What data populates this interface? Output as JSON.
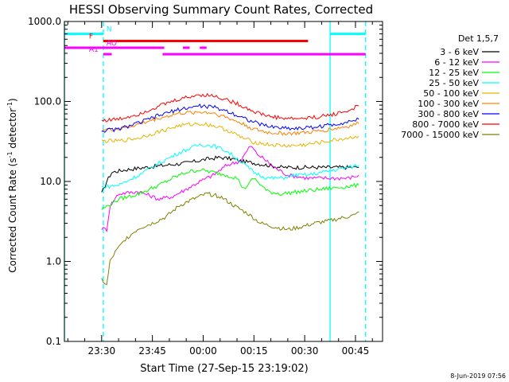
{
  "chart_data": {
    "type": "line",
    "title": "HESSI Observing Summary Count Rates, Corrected",
    "xlabel": "Start Time (27-Sep-15 23:19:02)",
    "ylabel_main": "Corrected Count Rate (s",
    "ylabel_sup1": "-1",
    "ylabel_mid": " detector",
    "ylabel_sup2": "-1",
    "ylabel_end": ")",
    "y_scale": "log",
    "ylim": [
      0.1,
      1000.0
    ],
    "xlim": [
      "23:19:02",
      "00:53:00"
    ],
    "y_ticks": [
      {
        "value": 1000.0,
        "label": "1000.0"
      },
      {
        "value": 100.0,
        "label": "100.0"
      },
      {
        "value": 10.0,
        "label": "10.0"
      },
      {
        "value": 1.0,
        "label": "1.0"
      },
      {
        "value": 0.1,
        "label": "0.1"
      }
    ],
    "x_ticks": [
      {
        "minutes": 11,
        "label": "23:30"
      },
      {
        "minutes": 26,
        "label": "23:45"
      },
      {
        "minutes": 41,
        "label": "00:00"
      },
      {
        "minutes": 56,
        "label": "00:15"
      },
      {
        "minutes": 71,
        "label": "00:30"
      },
      {
        "minutes": 86,
        "label": "00:45"
      }
    ],
    "legend_title": "Det 1,5,7",
    "series": [
      {
        "name": "3 - 6 keV",
        "color": "#000000",
        "points": [
          [
            11,
            7
          ],
          [
            12.5,
            10
          ],
          [
            14,
            13
          ],
          [
            18,
            14
          ],
          [
            24,
            15
          ],
          [
            30,
            16
          ],
          [
            36,
            17
          ],
          [
            42,
            19
          ],
          [
            46,
            20
          ],
          [
            50,
            19
          ],
          [
            52,
            18
          ],
          [
            56,
            17
          ],
          [
            60,
            16
          ],
          [
            64,
            15
          ],
          [
            68,
            15
          ],
          [
            72,
            15
          ],
          [
            76,
            15
          ],
          [
            80,
            15
          ],
          [
            84,
            15
          ],
          [
            87,
            15
          ]
        ]
      },
      {
        "name": "6 - 12 keV",
        "color": "#ff00ff",
        "points": [
          [
            11,
            2.6
          ],
          [
            12.5,
            2.5
          ],
          [
            13.5,
            5
          ],
          [
            16,
            7
          ],
          [
            22,
            7.5
          ],
          [
            28,
            6
          ],
          [
            32,
            6.5
          ],
          [
            36,
            8
          ],
          [
            40,
            10
          ],
          [
            44,
            12
          ],
          [
            48,
            16
          ],
          [
            52,
            18
          ],
          [
            55,
            28
          ],
          [
            57,
            22
          ],
          [
            59,
            19
          ],
          [
            62,
            15
          ],
          [
            66,
            12
          ],
          [
            72,
            11
          ],
          [
            78,
            11
          ],
          [
            84,
            11
          ],
          [
            87,
            12
          ]
        ]
      },
      {
        "name": "12 - 25 keV",
        "color": "#00ff00",
        "points": [
          [
            11,
            4.5
          ],
          [
            13,
            5
          ],
          [
            16,
            6
          ],
          [
            22,
            7
          ],
          [
            28,
            9
          ],
          [
            32,
            11
          ],
          [
            36,
            13
          ],
          [
            40,
            14
          ],
          [
            44,
            13
          ],
          [
            48,
            12
          ],
          [
            51,
            11
          ],
          [
            53,
            8
          ],
          [
            56,
            11
          ],
          [
            60,
            7.5
          ],
          [
            64,
            7
          ],
          [
            70,
            7.5
          ],
          [
            76,
            8
          ],
          [
            82,
            8.5
          ],
          [
            87,
            9
          ]
        ]
      },
      {
        "name": "25 - 50 keV",
        "color": "#00ffff",
        "points": [
          [
            11,
            8.5
          ],
          [
            16,
            9
          ],
          [
            22,
            12
          ],
          [
            28,
            17
          ],
          [
            34,
            23
          ],
          [
            40,
            29
          ],
          [
            44,
            28
          ],
          [
            48,
            24
          ],
          [
            52,
            18
          ],
          [
            56,
            13
          ],
          [
            60,
            11
          ],
          [
            64,
            11
          ],
          [
            68,
            12
          ],
          [
            72,
            12
          ],
          [
            76,
            13
          ],
          [
            80,
            14
          ],
          [
            84,
            15
          ],
          [
            87,
            16
          ]
        ]
      },
      {
        "name": "50 - 100 keV",
        "color": "#e8b400",
        "points": [
          [
            11,
            32
          ],
          [
            16,
            32
          ],
          [
            22,
            35
          ],
          [
            28,
            42
          ],
          [
            34,
            50
          ],
          [
            40,
            53
          ],
          [
            44,
            50
          ],
          [
            48,
            44
          ],
          [
            52,
            36
          ],
          [
            56,
            31
          ],
          [
            60,
            29
          ],
          [
            64,
            28
          ],
          [
            68,
            28
          ],
          [
            72,
            29
          ],
          [
            76,
            31
          ],
          [
            80,
            33
          ],
          [
            84,
            35
          ],
          [
            87,
            37
          ]
        ]
      },
      {
        "name": "100 - 300 keV",
        "color": "#ff8000",
        "points": [
          [
            11,
            44
          ],
          [
            16,
            45
          ],
          [
            22,
            52
          ],
          [
            28,
            62
          ],
          [
            34,
            71
          ],
          [
            40,
            74
          ],
          [
            44,
            72
          ],
          [
            48,
            63
          ],
          [
            52,
            54
          ],
          [
            56,
            45
          ],
          [
            60,
            41
          ],
          [
            64,
            40
          ],
          [
            68,
            40
          ],
          [
            72,
            41
          ],
          [
            76,
            43
          ],
          [
            80,
            46
          ],
          [
            84,
            49
          ],
          [
            87,
            53
          ]
        ]
      },
      {
        "name": "300 - 800 keV",
        "color": "#0000ff",
        "points": [
          [
            11,
            43
          ],
          [
            16,
            45
          ],
          [
            22,
            54
          ],
          [
            28,
            67
          ],
          [
            34,
            80
          ],
          [
            40,
            88
          ],
          [
            44,
            85
          ],
          [
            48,
            76
          ],
          [
            52,
            65
          ],
          [
            56,
            55
          ],
          [
            60,
            49
          ],
          [
            64,
            47
          ],
          [
            68,
            46
          ],
          [
            72,
            47
          ],
          [
            76,
            49
          ],
          [
            80,
            52
          ],
          [
            84,
            56
          ],
          [
            87,
            60
          ]
        ]
      },
      {
        "name": "800 - 7000 keV",
        "color": "#ff0000",
        "points": [
          [
            11,
            58
          ],
          [
            16,
            60
          ],
          [
            22,
            70
          ],
          [
            28,
            88
          ],
          [
            34,
            107
          ],
          [
            40,
            122
          ],
          [
            44,
            118
          ],
          [
            48,
            105
          ],
          [
            52,
            90
          ],
          [
            56,
            75
          ],
          [
            60,
            66
          ],
          [
            64,
            62
          ],
          [
            68,
            61
          ],
          [
            72,
            62
          ],
          [
            76,
            65
          ],
          [
            80,
            70
          ],
          [
            84,
            77
          ],
          [
            87,
            88
          ]
        ]
      },
      {
        "name": "7000 - 15000 keV",
        "color": "#808000",
        "points": [
          [
            11,
            0.6
          ],
          [
            12.5,
            0.5
          ],
          [
            13.5,
            1.0
          ],
          [
            15,
            1.3
          ],
          [
            18,
            1.9
          ],
          [
            22,
            2.6
          ],
          [
            26,
            3.0
          ],
          [
            30,
            3.6
          ],
          [
            34,
            5
          ],
          [
            38,
            6
          ],
          [
            42,
            7
          ],
          [
            46,
            6.5
          ],
          [
            50,
            5
          ],
          [
            54,
            4.0
          ],
          [
            58,
            3.0
          ],
          [
            62,
            2.7
          ],
          [
            66,
            2.5
          ],
          [
            70,
            2.7
          ],
          [
            74,
            3.0
          ],
          [
            78,
            3.2
          ],
          [
            82,
            3.5
          ],
          [
            86,
            3.8
          ],
          [
            87,
            4.2
          ]
        ]
      }
    ],
    "vertical_lines": [
      {
        "minutes": 0,
        "style": "solid",
        "color": "#00ffff"
      },
      {
        "minutes": 11.5,
        "style": "dashed",
        "color": "#00ffff"
      },
      {
        "minutes": 78.5,
        "style": "solid",
        "color": "#00ffff"
      },
      {
        "minutes": 89,
        "style": "dashed",
        "color": "#00ffff"
      }
    ],
    "flag_bars": [
      {
        "label": "N",
        "color": "#00ffff",
        "y": 700,
        "segments": [
          [
            0,
            11.5
          ],
          [
            78.5,
            89
          ]
        ]
      },
      {
        "label": "F",
        "color": "#ff0000",
        "y": 570,
        "segments": [
          [
            11.5,
            72
          ]
        ]
      },
      {
        "label": "AO",
        "color": "#ff00ff",
        "y": 470,
        "segments": [
          [
            0,
            29.5
          ],
          [
            35,
            37
          ],
          [
            40,
            42
          ]
        ]
      },
      {
        "label": "A1",
        "color": "#ff00ff",
        "y": 390,
        "segments": [
          [
            11.5,
            14
          ],
          [
            29,
            89
          ]
        ]
      }
    ],
    "date_stamp": "8-Jun-2019 07:56"
  }
}
